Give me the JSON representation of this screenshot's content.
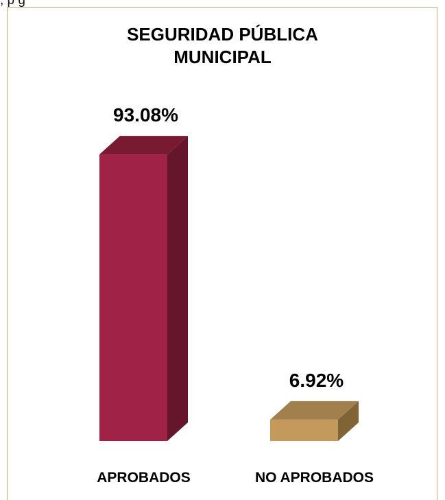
{
  "page": {
    "top_text": ", p                                        g"
  },
  "chart_data": {
    "type": "bar",
    "title_lines": [
      "SEGURIDAD PÚBLICA",
      "MUNICIPAL"
    ],
    "categories": [
      "APROBADOS",
      "NO APROBADOS"
    ],
    "values": [
      93.08,
      6.92
    ],
    "value_labels": [
      "93.08%",
      "6.92%"
    ],
    "ylim": [
      0,
      100
    ],
    "style": "3d-column",
    "grid": false,
    "legend": "none",
    "colors": {
      "front": [
        "#a02246",
        "#c49a5c"
      ],
      "top": [
        "#791a33",
        "#a2804d"
      ],
      "side": [
        "#66162c",
        "#806436"
      ],
      "frame": "#c7ab86"
    }
  }
}
